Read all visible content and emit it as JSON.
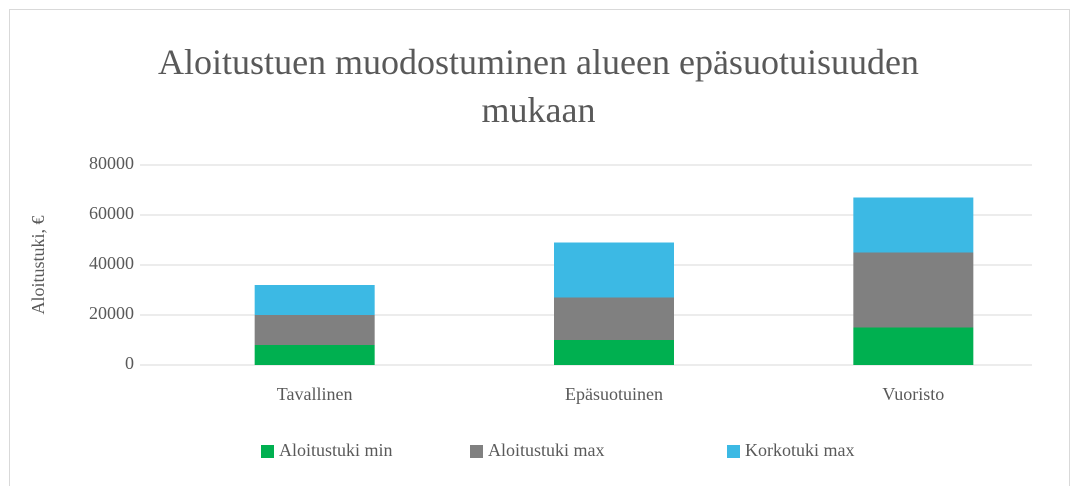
{
  "chart_data": {
    "type": "stacked_bar",
    "title": "Aloitustuen muodostuminen alueen epäsuotuisuuden mukaan",
    "y_label": "Aloitustuki, €",
    "categories": [
      "Tavallinen",
      "Epäsuotuinen",
      "Vuoristo"
    ],
    "series": [
      {
        "name": "Aloitustuki min",
        "color": "#00b050",
        "values": [
          8000,
          10000,
          15000
        ]
      },
      {
        "name": "Aloitustuki max",
        "color": "#808080",
        "values": [
          12000,
          17000,
          30000
        ]
      },
      {
        "name": "Korkotuki max",
        "color": "#3cb9e4",
        "values": [
          12000,
          22000,
          22000
        ]
      }
    ],
    "ylim": [
      0,
      80000
    ],
    "yticks": [
      0,
      20000,
      40000,
      60000,
      80000
    ],
    "grid": true,
    "legend": "bottom"
  }
}
